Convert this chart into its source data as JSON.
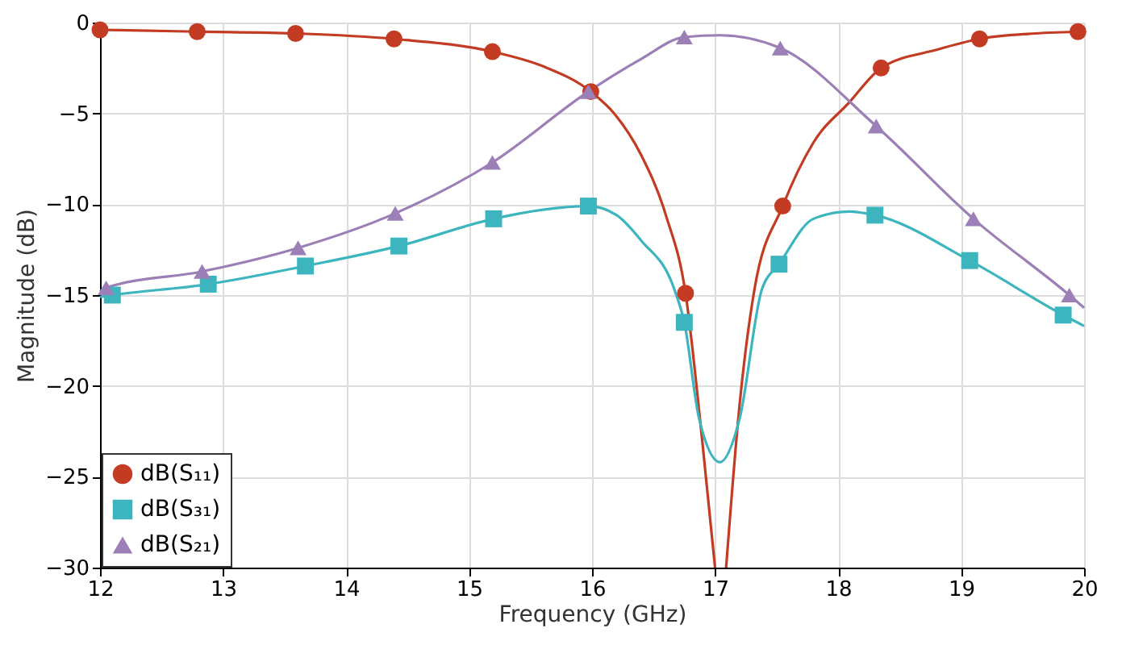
{
  "chart_data": {
    "type": "line",
    "xlabel": "Frequency (GHz)",
    "ylabel": "Magnitude (dB)",
    "xlim": [
      12,
      20
    ],
    "xticks": [
      12,
      13,
      14,
      15,
      16,
      17,
      18,
      19,
      20
    ],
    "ylim": [
      -30,
      0
    ],
    "yticks": [
      -30,
      -25,
      -20,
      -15,
      -10,
      -5,
      0
    ],
    "grid": true,
    "legend": "bottom left",
    "series": [
      {
        "color": "#c23b22",
        "x": [
          12,
          12.79,
          13.59,
          14.39,
          15.19,
          15.6,
          15.99,
          16.18,
          16.4,
          16.6,
          16.76,
          16.9,
          17.0,
          17.04,
          17.09,
          17.2,
          17.32,
          17.55,
          17.8,
          18.09,
          18.35,
          18.8,
          19.15,
          19.6,
          20
        ],
        "values": [
          -0.4,
          -0.5,
          -0.6,
          -0.9,
          -1.6,
          -2.4,
          -3.8,
          -5.0,
          -7.3,
          -10.6,
          -14.9,
          -23.3,
          -30,
          null,
          -30,
          -21,
          -14.7,
          -10.1,
          -6.6,
          -4.4,
          -2.5,
          -1.5,
          -0.9,
          -0.6,
          -0.5
        ]
      },
      {
        "color": "#3db5be",
        "x": [
          12,
          12.1,
          12.88,
          13.67,
          14.43,
          15.2,
          15.6,
          15.97,
          16.2,
          16.4,
          16.67,
          16.75,
          16.87,
          17.04,
          17.2,
          17.38,
          17.52,
          17.8,
          18.09,
          18.3,
          19.07,
          19.83,
          20
        ],
        "values": [
          -15.1,
          -15.0,
          -14.4,
          -13.4,
          -12.3,
          -10.8,
          -10.3,
          -10.1,
          -10.6,
          -12,
          -14.7,
          -16.5,
          -21.8,
          -24.2,
          -21.8,
          -14.7,
          -13.3,
          -10.8,
          -10.4,
          -10.6,
          -13.1,
          -16.1,
          -16.7
        ]
      },
      {
        "color": "#9b7fb6",
        "x": [
          12,
          12.05,
          12.83,
          13.61,
          14.4,
          15.19,
          15.97,
          16.4,
          16.75,
          17.04,
          17.53,
          18.31,
          19.1,
          19.88,
          20
        ],
        "values": [
          -14.8,
          -14.6,
          -13.7,
          -12.4,
          -10.5,
          -7.7,
          -3.8,
          -2.0,
          -0.8,
          -0.7,
          -1.4,
          -5.7,
          -10.8,
          -15.0,
          -15.7
        ]
      },
      {
        "type": "scatter",
        "name": "dB(S₁₁)",
        "color": "#c23b22",
        "marker": "circle",
        "x": [
          12,
          12.79,
          13.59,
          14.39,
          15.19,
          15.99,
          16.76,
          17.55,
          18.35,
          19.15,
          19.95
        ],
        "values": [
          -0.4,
          -0.5,
          -0.6,
          -0.9,
          -1.6,
          -3.8,
          -14.9,
          -10.1,
          -2.5,
          -0.9,
          -0.5
        ]
      },
      {
        "type": "scatter",
        "name": "dB(S₃₁)",
        "color": "#3db5be",
        "marker": "square",
        "x": [
          12.1,
          12.88,
          13.67,
          14.43,
          15.2,
          15.97,
          16.75,
          17.52,
          18.3,
          19.07,
          19.83
        ],
        "values": [
          -15.0,
          -14.4,
          -13.4,
          -12.3,
          -10.8,
          -10.1,
          -16.5,
          -13.3,
          -10.6,
          -13.1,
          -16.1
        ]
      },
      {
        "type": "scatter",
        "name": "dB(S₂₁)",
        "color": "#9b7fb6",
        "marker": "triangle",
        "x": [
          12.05,
          12.83,
          13.61,
          14.4,
          15.19,
          15.97,
          16.75,
          17.53,
          18.31,
          19.1,
          19.88
        ],
        "values": [
          -14.6,
          -13.7,
          -12.4,
          -10.5,
          -7.7,
          -3.8,
          -0.8,
          -1.4,
          -5.7,
          -10.8,
          -15.0
        ]
      }
    ]
  }
}
